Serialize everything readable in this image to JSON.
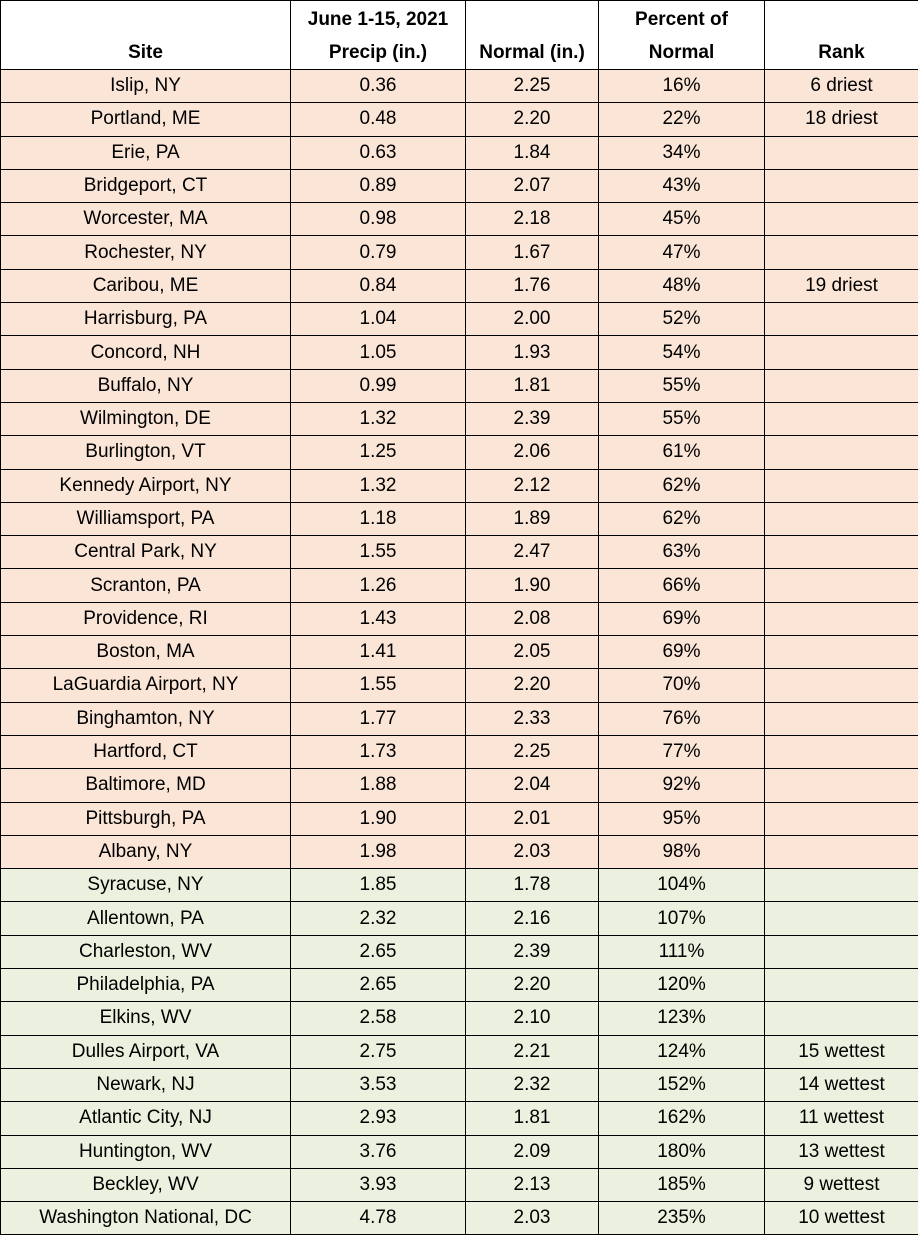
{
  "table": {
    "header": [
      [
        "Site"
      ],
      [
        "June 1-15, 2021",
        "Precip (in.)"
      ],
      [
        "Normal (in.)"
      ],
      [
        "Percent of",
        "Normal"
      ],
      [
        "Rank"
      ]
    ],
    "rows": [
      [
        "Islip, NY",
        "0.36",
        "2.25",
        "16%",
        "6 driest"
      ],
      [
        "Portland, ME",
        "0.48",
        "2.20",
        "22%",
        "18 driest"
      ],
      [
        "Erie, PA",
        "0.63",
        "1.84",
        "34%",
        null
      ],
      [
        "Bridgeport, CT",
        "0.89",
        "2.07",
        "43%",
        null
      ],
      [
        "Worcester, MA",
        "0.98",
        "2.18",
        "45%",
        null
      ],
      [
        "Rochester, NY",
        "0.79",
        "1.67",
        "47%",
        null
      ],
      [
        "Caribou, ME",
        "0.84",
        "1.76",
        "48%",
        "19 driest"
      ],
      [
        "Harrisburg, PA",
        "1.04",
        "2.00",
        "52%",
        null
      ],
      [
        "Concord, NH",
        "1.05",
        "1.93",
        "54%",
        null
      ],
      [
        "Buffalo, NY",
        "0.99",
        "1.81",
        "55%",
        null
      ],
      [
        "Wilmington, DE",
        "1.32",
        "2.39",
        "55%",
        null
      ],
      [
        "Burlington, VT",
        "1.25",
        "2.06",
        "61%",
        null
      ],
      [
        "Kennedy Airport, NY",
        "1.32",
        "2.12",
        "62%",
        null
      ],
      [
        "Williamsport, PA",
        "1.18",
        "1.89",
        "62%",
        null
      ],
      [
        "Central Park, NY",
        "1.55",
        "2.47",
        "63%",
        null
      ],
      [
        "Scranton, PA",
        "1.26",
        "1.90",
        "66%",
        null
      ],
      [
        "Providence, RI",
        "1.43",
        "2.08",
        "69%",
        null
      ],
      [
        "Boston, MA",
        "1.41",
        "2.05",
        "69%",
        null
      ],
      [
        "LaGuardia Airport, NY",
        "1.55",
        "2.20",
        "70%",
        null
      ],
      [
        "Binghamton, NY",
        "1.77",
        "2.33",
        "76%",
        null
      ],
      [
        "Hartford, CT",
        "1.73",
        "2.25",
        "77%",
        null
      ],
      [
        "Baltimore, MD",
        "1.88",
        "2.04",
        "92%",
        null
      ],
      [
        "Pittsburgh, PA",
        "1.90",
        "2.01",
        "95%",
        null
      ],
      [
        "Albany, NY",
        "1.98",
        "2.03",
        "98%",
        null
      ],
      [
        "Syracuse, NY",
        "1.85",
        "1.78",
        "104%",
        null
      ],
      [
        "Allentown, PA",
        "2.32",
        "2.16",
        "107%",
        null
      ],
      [
        "Charleston, WV",
        "2.65",
        "2.39",
        "111%",
        null
      ],
      [
        "Philadelphia, PA",
        "2.65",
        "2.20",
        "120%",
        null
      ],
      [
        "Elkins, WV",
        "2.58",
        "2.10",
        "123%",
        null
      ],
      [
        "Dulles Airport, VA",
        "2.75",
        "2.21",
        "124%",
        "15 wettest"
      ],
      [
        "Newark, NJ",
        "3.53",
        "2.32",
        "152%",
        "14 wettest"
      ],
      [
        "Atlantic City, NJ",
        "2.93",
        "1.81",
        "162%",
        "11 wettest"
      ],
      [
        "Huntington, WV",
        "3.76",
        "2.09",
        "180%",
        "13 wettest"
      ],
      [
        "Beckley, WV",
        "3.93",
        "2.13",
        "185%",
        "9 wettest"
      ],
      [
        "Washington National, DC",
        "4.78",
        "2.03",
        "235%",
        "10 wettest"
      ]
    ]
  }
}
